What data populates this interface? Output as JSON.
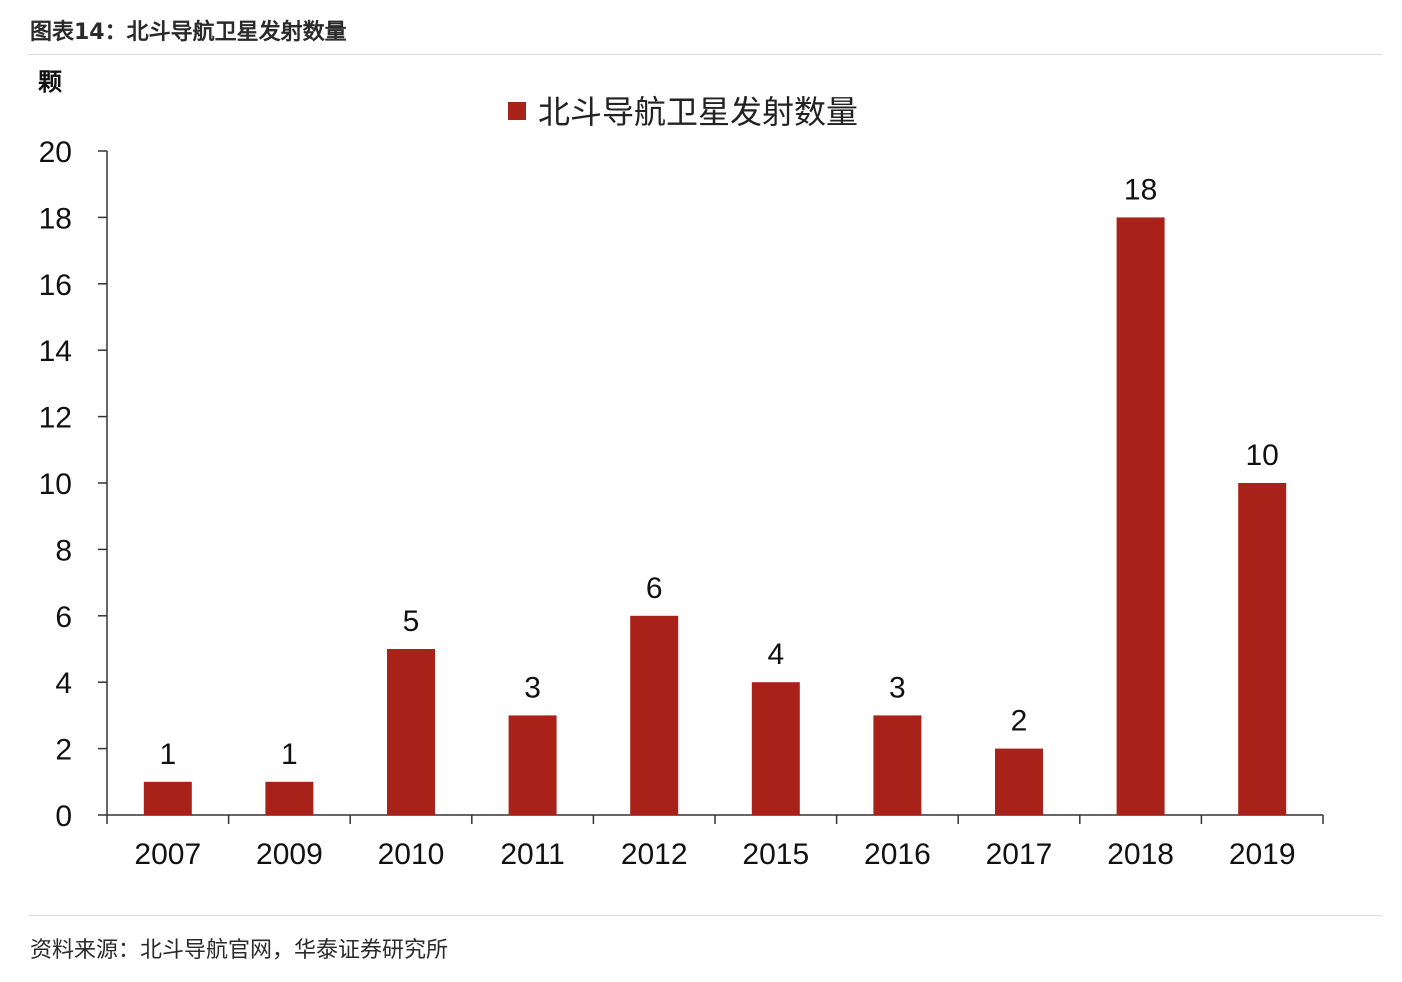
{
  "figure": {
    "title": "图表14：北斗导航卫星发射数量",
    "source": "资料来源：北斗导航官网，华泰证券研究所"
  },
  "chart_data": {
    "type": "bar",
    "title": "",
    "ylabel": "颗",
    "xlabel": "",
    "categories": [
      "2007",
      "2009",
      "2010",
      "2011",
      "2012",
      "2015",
      "2016",
      "2017",
      "2018",
      "2019"
    ],
    "series": [
      {
        "name": "北斗导航卫星发射数量",
        "values": [
          1,
          1,
          5,
          3,
          6,
          4,
          3,
          2,
          18,
          10
        ],
        "color": "#a8221a"
      }
    ],
    "ylim": [
      0,
      20
    ],
    "yticks": [
      0,
      2,
      4,
      6,
      8,
      10,
      12,
      14,
      16,
      18,
      20
    ],
    "grid": false,
    "legend_position": "top-center",
    "data_labels": true
  }
}
